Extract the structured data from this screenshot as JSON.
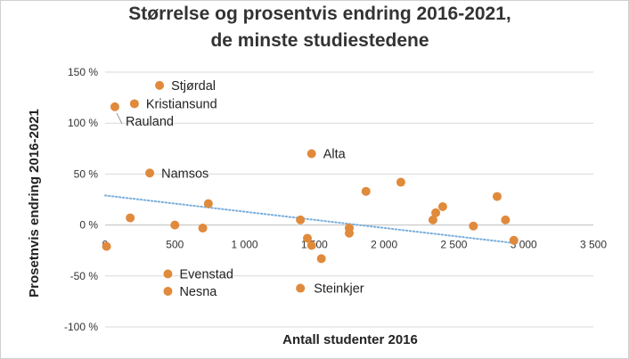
{
  "chart_data": {
    "type": "scatter",
    "title_lines": [
      "Størrelse og prosentvis endring 2016-2021,",
      "de minste studiestedene"
    ],
    "xlabel": "Antall studenter 2016",
    "ylabel": "Prosetnvis endring 2016-2021",
    "xlim": [
      0,
      3500
    ],
    "ylim": [
      -100,
      150
    ],
    "x_ticks": [
      0,
      500,
      1000,
      1500,
      2000,
      2500,
      3000,
      3500
    ],
    "x_tick_labels": [
      "0",
      "500",
      "1 000",
      "1 500",
      "2 000",
      "2 500",
      "3 000",
      "3 500"
    ],
    "y_ticks": [
      -100,
      -50,
      0,
      50,
      100,
      150
    ],
    "y_tick_labels": [
      "-100 %",
      "-50 %",
      "0 %",
      "50 %",
      "100 %",
      "150 %"
    ],
    "grid": "horizontal",
    "marker_color": "#e08a3c",
    "trend_color": "#7aaedc",
    "trendline": {
      "style": "dotted",
      "x": [
        0,
        2950
      ],
      "y": [
        29,
        -18
      ]
    },
    "points": [
      {
        "x": 10,
        "y": -21,
        "label": ""
      },
      {
        "x": 70,
        "y": 116,
        "label": "Rauland"
      },
      {
        "x": 180,
        "y": 7,
        "label": ""
      },
      {
        "x": 210,
        "y": 119,
        "label": "Kristiansund"
      },
      {
        "x": 320,
        "y": 51,
        "label": "Namsos"
      },
      {
        "x": 390,
        "y": 137,
        "label": "Stjørdal"
      },
      {
        "x": 450,
        "y": -48,
        "label": "Evenstad"
      },
      {
        "x": 450,
        "y": -65,
        "label": "Nesna"
      },
      {
        "x": 500,
        "y": 0,
        "label": ""
      },
      {
        "x": 700,
        "y": -3,
        "label": ""
      },
      {
        "x": 740,
        "y": 21,
        "label": ""
      },
      {
        "x": 1400,
        "y": 5,
        "label": ""
      },
      {
        "x": 1400,
        "y": -62,
        "label": "Steinkjer"
      },
      {
        "x": 1450,
        "y": -13,
        "label": ""
      },
      {
        "x": 1480,
        "y": 70,
        "label": "Alta"
      },
      {
        "x": 1480,
        "y": -20,
        "label": ""
      },
      {
        "x": 1550,
        "y": -33,
        "label": ""
      },
      {
        "x": 1750,
        "y": -3,
        "label": ""
      },
      {
        "x": 1750,
        "y": -8,
        "label": ""
      },
      {
        "x": 1870,
        "y": 33,
        "label": ""
      },
      {
        "x": 2120,
        "y": 42,
        "label": ""
      },
      {
        "x": 2350,
        "y": 5,
        "label": ""
      },
      {
        "x": 2370,
        "y": 12,
        "label": ""
      },
      {
        "x": 2420,
        "y": 18,
        "label": ""
      },
      {
        "x": 2640,
        "y": -1,
        "label": ""
      },
      {
        "x": 2810,
        "y": 28,
        "label": ""
      },
      {
        "x": 2870,
        "y": 5,
        "label": ""
      },
      {
        "x": 2930,
        "y": -15,
        "label": ""
      }
    ]
  }
}
